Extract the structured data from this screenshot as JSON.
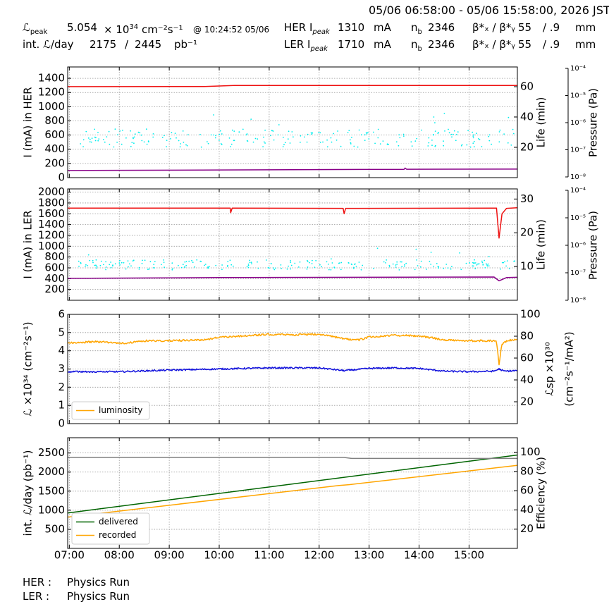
{
  "header": {
    "time_range": "05/06 06:58:00 - 05/06 15:58:00, 2026 JST",
    "lpeak_label": "ℒ",
    "lpeak_sub": "peak",
    "lpeak_value": "5.054",
    "lpeak_unit_prefix": "× 10",
    "lpeak_unit_exp": "34",
    "lpeak_unit_rest": "cm⁻²s⁻¹",
    "lpeak_time": "@ 10:24:52 05/06",
    "intl_label": "int. ℒ/day",
    "intl_value1": "2175",
    "intl_sep": "/",
    "intl_value2": "2445",
    "intl_unit": "pb⁻¹",
    "her_label": "HER I",
    "her_sub": "peak",
    "her_value": "1310",
    "her_unit": "mA",
    "ler_label": "LER I",
    "ler_sub": "peak",
    "ler_value": "1710",
    "ler_unit": "mA",
    "nb_label": "n",
    "nb_sub": "b",
    "her_nb": "2346",
    "ler_nb": "2346",
    "beta_label": "β*ₓ / β*ᵧ",
    "her_bx": "55",
    "her_by": "/ .9",
    "ler_bx": "55",
    "ler_by": "/ .9",
    "beta_unit": "mm"
  },
  "footer": {
    "her_label": "HER :",
    "her_status": "Physics Run",
    "ler_label": "LER :",
    "ler_status": "Physics Run"
  },
  "colors": {
    "current": "#ee1111",
    "pressure": "#880088",
    "life": "#00eeee",
    "luminosity": "#ffa500",
    "specific": "#1111dd",
    "delivered": "#006400",
    "recorded": "#ffa500",
    "efficiency": "#808080"
  },
  "chart_data": [
    {
      "type": "line",
      "x_ticks": [
        "07:00",
        "08:00",
        "09:00",
        "10:00",
        "11:00",
        "12:00",
        "13:00",
        "14:00",
        "15:00"
      ],
      "x_range_hours": [
        6.967,
        15.967
      ],
      "ylabel": "I (mA) in HER",
      "ylim": [
        0,
        1560
      ],
      "yticks": [
        0,
        200,
        400,
        600,
        800,
        1000,
        1200,
        1400
      ],
      "y2label": "Life (min)",
      "y2lim": [
        0,
        73
      ],
      "y2ticks": [
        20,
        40,
        60
      ],
      "y3label": "Pressure (Pa)",
      "y3_log_range": [
        -8,
        -4
      ],
      "y3ticks": [
        "10⁻⁸",
        "10⁻⁷",
        "10⁻⁶",
        "10⁻⁵",
        "10⁻⁴"
      ],
      "grid": true,
      "series": [
        {
          "role": "current",
          "color": "current",
          "x": [
            6.97,
            9.7,
            10.3,
            15.96
          ],
          "y": [
            1283,
            1285,
            1300,
            1300
          ]
        },
        {
          "role": "pressure",
          "color": "pressure",
          "x": [
            6.97,
            13.7,
            13.72,
            13.75,
            15.96
          ],
          "y": [
            100,
            117,
            135,
            118,
            120
          ]
        },
        {
          "role": "life",
          "color": "life",
          "scatter": true,
          "band": [
            20,
            32
          ],
          "x_range": [
            7.2,
            15.96
          ],
          "seed": 11
        }
      ]
    },
    {
      "type": "line",
      "x_ticks": [
        "07:00",
        "08:00",
        "09:00",
        "10:00",
        "11:00",
        "12:00",
        "13:00",
        "14:00",
        "15:00"
      ],
      "x_range_hours": [
        6.967,
        15.967
      ],
      "ylabel": "I (mA) in LER",
      "ylim": [
        0,
        2060
      ],
      "yticks": [
        200,
        400,
        600,
        800,
        1000,
        1200,
        1400,
        1600,
        1800,
        2000
      ],
      "y2label": "Life (min)",
      "y2lim": [
        0,
        33
      ],
      "y2ticks": [
        10,
        20,
        30
      ],
      "y3label": "Pressure (Pa)",
      "y3_log_range": [
        -8,
        -4
      ],
      "y3ticks": [
        "10⁻⁸",
        "10⁻⁷",
        "10⁻⁶",
        "10⁻⁵",
        "10⁻⁴"
      ],
      "grid": true,
      "series": [
        {
          "role": "current",
          "color": "current",
          "x": [
            6.97,
            10.22,
            10.23,
            10.26,
            12.48,
            12.5,
            12.53,
            15.55,
            15.6,
            15.66,
            15.75,
            15.96
          ],
          "y": [
            1705,
            1705,
            1620,
            1705,
            1700,
            1600,
            1700,
            1705,
            1150,
            1600,
            1700,
            1710
          ]
        },
        {
          "role": "pressure",
          "color": "pressure",
          "x": [
            6.97,
            10,
            15.5,
            15.6,
            15.75,
            15.96
          ],
          "y": [
            405,
            420,
            430,
            360,
            420,
            425
          ]
        },
        {
          "role": "life",
          "color": "life",
          "scatter": true,
          "band": [
            9,
            12
          ],
          "x_range": [
            7.1,
            15.96
          ],
          "seed": 23
        }
      ]
    },
    {
      "type": "line",
      "x_ticks": [
        "07:00",
        "08:00",
        "09:00",
        "10:00",
        "11:00",
        "12:00",
        "13:00",
        "14:00",
        "15:00"
      ],
      "x_range_hours": [
        6.967,
        15.967
      ],
      "ylabel": "ℒ ×10³⁴ (cm⁻²s⁻¹)",
      "ylim": [
        0,
        6
      ],
      "yticks": [
        0,
        1,
        2,
        3,
        4,
        5,
        6
      ],
      "y2label_line1": "ℒsp ×10³⁰",
      "y2label_line2": "(cm⁻²s⁻¹/mA²)",
      "y2lim": [
        0,
        100
      ],
      "y2ticks": [
        20,
        40,
        60,
        80,
        100
      ],
      "grid": true,
      "legend": {
        "position": "lower-left",
        "entries": [
          "luminosity"
        ]
      },
      "series": [
        {
          "name": "luminosity",
          "color": "luminosity",
          "axis": "y1",
          "noise": 0.05,
          "x": [
            6.97,
            7.5,
            8.1,
            8.5,
            9.0,
            9.7,
            10.0,
            10.5,
            11.0,
            11.5,
            12.0,
            12.5,
            12.8,
            13.0,
            13.5,
            14.0,
            14.5,
            15.0,
            15.5,
            15.55,
            15.6,
            15.65,
            15.75,
            15.96
          ],
          "y": [
            4.42,
            4.5,
            4.42,
            4.55,
            4.55,
            4.6,
            4.75,
            4.82,
            4.9,
            4.88,
            4.92,
            4.65,
            4.6,
            4.75,
            4.85,
            4.82,
            4.6,
            4.55,
            4.55,
            4.5,
            3.25,
            4.3,
            4.55,
            4.65
          ]
        },
        {
          "name": "",
          "color": "specific",
          "axis": "y2",
          "noise": 0.7,
          "x": [
            6.97,
            8.0,
            9.0,
            10.0,
            10.5,
            11.0,
            11.5,
            12.0,
            12.5,
            13.0,
            13.5,
            14.0,
            14.5,
            15.0,
            15.5,
            15.6,
            15.7,
            15.96
          ],
          "y": [
            47.5,
            47.5,
            49,
            50,
            50.5,
            51,
            51,
            51,
            48.5,
            50.5,
            51,
            50.5,
            48,
            47.5,
            48,
            50,
            48,
            48.5
          ]
        }
      ]
    },
    {
      "type": "line",
      "x_ticks": [
        "07:00",
        "08:00",
        "09:00",
        "10:00",
        "11:00",
        "12:00",
        "13:00",
        "14:00",
        "15:00"
      ],
      "x_range_hours": [
        6.967,
        15.967
      ],
      "ylabel": "int. ℒ/day (pb⁻¹)",
      "ylim": [
        0,
        2900
      ],
      "yticks": [
        500,
        1000,
        1500,
        2000,
        2500
      ],
      "y2label": "Efficiency (%)",
      "y2lim": [
        0,
        115
      ],
      "y2ticks": [
        20,
        40,
        60,
        80,
        100
      ],
      "grid": true,
      "legend": {
        "position": "lower-left",
        "entries": [
          "delivered",
          "recorded"
        ]
      },
      "series": [
        {
          "name": "delivered",
          "color": "delivered",
          "axis": "y1",
          "x": [
            6.97,
            15.96
          ],
          "y": [
            930,
            2445
          ]
        },
        {
          "name": "recorded",
          "color": "recorded",
          "axis": "y1",
          "x": [
            6.97,
            12.4,
            12.6,
            15.96
          ],
          "y": [
            820,
            1650,
            1670,
            2175
          ]
        },
        {
          "name": "",
          "color": "efficiency",
          "axis": "y2",
          "x": [
            6.97,
            12.5,
            12.65,
            15.96
          ],
          "y": [
            94.5,
            94.5,
            93.5,
            93.5
          ]
        }
      ]
    }
  ]
}
